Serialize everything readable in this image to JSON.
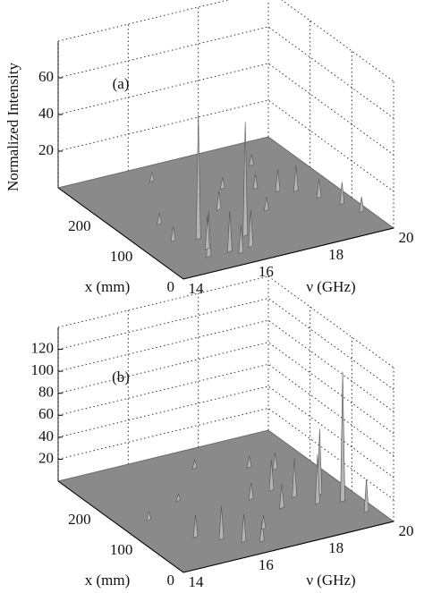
{
  "chart_data": [
    {
      "type": "surface3d",
      "label": "(a)",
      "zlabel": "Normalized Intensity",
      "xlabel": "x (mm)",
      "ylabel": "ν (GHz)",
      "xlim": [
        0,
        300
      ],
      "xticks": [
        0,
        100,
        200
      ],
      "ylim": [
        14,
        20
      ],
      "yticks": [
        14,
        16,
        18,
        20
      ],
      "zlim": [
        0,
        80
      ],
      "zticks": [
        20,
        40,
        60
      ],
      "grid": true,
      "color": "#b4b4b4",
      "y": [
        15.5,
        16.6,
        15.2,
        15.4,
        15.8,
        16.0,
        16.4,
        14.9,
        15.1,
        16.8,
        17.5,
        18.2,
        18.6,
        19.0,
        19.3,
        19.6,
        18.8,
        17.8,
        19.8,
        16.2
      ],
      "x": [
        90,
        70,
        40,
        60,
        40,
        30,
        40,
        100,
        150,
        150,
        200,
        180,
        160,
        150,
        120,
        90,
        240,
        120,
        60,
        260
      ],
      "values": [
        68,
        62,
        25,
        18,
        22,
        15,
        20,
        8,
        6,
        10,
        6,
        8,
        12,
        14,
        10,
        12,
        6,
        7,
        8,
        5
      ]
    },
    {
      "type": "surface3d",
      "label": "(b)",
      "xlabel": "x (mm)",
      "ylabel": "ν (GHz)",
      "xlim": [
        0,
        300
      ],
      "xticks": [
        0,
        100,
        200
      ],
      "ylim": [
        14,
        20
      ],
      "yticks": [
        14,
        16,
        18,
        20
      ],
      "zlim": [
        0,
        140
      ],
      "zticks": [
        20,
        40,
        60,
        80,
        100,
        120
      ],
      "grid": true,
      "color": "#b4b4b4",
      "y": [
        19.5,
        19.2,
        18.9,
        18.6,
        18.3,
        19.7,
        18.0,
        17.6,
        15.8,
        16.2,
        15.3,
        16.6,
        17.0,
        18.5,
        19.0,
        17.3,
        14.8,
        16.0
      ],
      "x": [
        80,
        110,
        90,
        120,
        150,
        40,
        100,
        140,
        60,
        40,
        80,
        30,
        60,
        220,
        200,
        250,
        150,
        180
      ],
      "values": [
        118,
        60,
        45,
        35,
        28,
        30,
        22,
        15,
        30,
        25,
        20,
        18,
        12,
        10,
        15,
        8,
        8,
        6
      ]
    }
  ]
}
